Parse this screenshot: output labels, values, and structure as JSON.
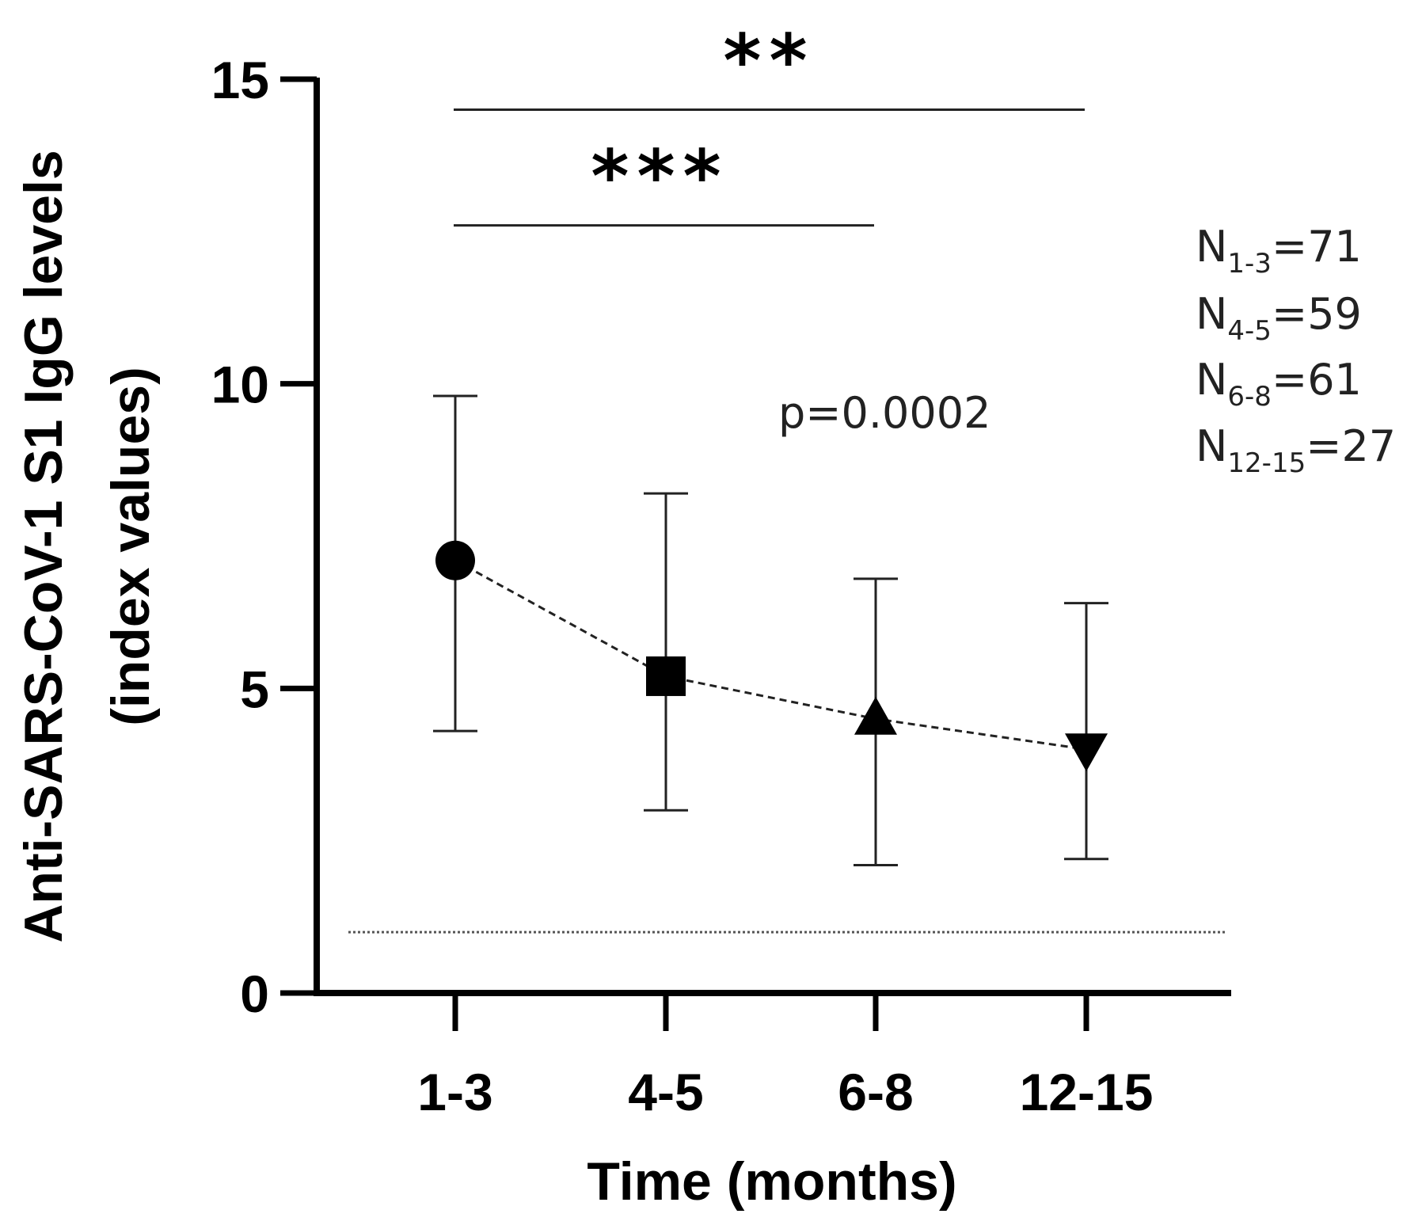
{
  "chart_data": {
    "type": "line",
    "ylabel_line1": "Anti-SARS-CoV-1 S1 IgG levels",
    "ylabel_line2": "(index values)",
    "xlabel": "Time (months)",
    "ylim": [
      0,
      15
    ],
    "yticks": [
      "0",
      "5",
      "10",
      "15"
    ],
    "categories": [
      "1-3",
      "4-5",
      "6-8",
      "12-15"
    ],
    "series": [
      {
        "name": "Anti-SARS-CoV-1 S1 IgG",
        "values": [
          7.1,
          5.2,
          4.5,
          4.0
        ],
        "error_low": [
          4.3,
          3.0,
          2.1,
          2.2
        ],
        "error_high": [
          9.8,
          8.2,
          6.8,
          6.4
        ],
        "markers": [
          "circle",
          "square",
          "triangle-up",
          "triangle-down"
        ],
        "line_style": "dashed"
      }
    ],
    "threshold": 1.0,
    "annotations": {
      "p_value": "p=0.0002",
      "significance": [
        {
          "label": "**",
          "from": "1-3",
          "to": "12-15",
          "level": 14.5
        },
        {
          "label": "***",
          "from": "1-3",
          "to": "6-8",
          "level": 12.6
        }
      ],
      "sample_sizes": [
        {
          "main": "N",
          "sub": "1-3",
          "rest": "=71"
        },
        {
          "main": "N",
          "sub": "4-5",
          "rest": "=59"
        },
        {
          "main": "N",
          "sub": "6-8",
          "rest": "=61"
        },
        {
          "main": "N",
          "sub": "12-15",
          "rest": "=27"
        }
      ]
    }
  },
  "colors": {
    "ink": "#000000",
    "text": "#222222"
  }
}
